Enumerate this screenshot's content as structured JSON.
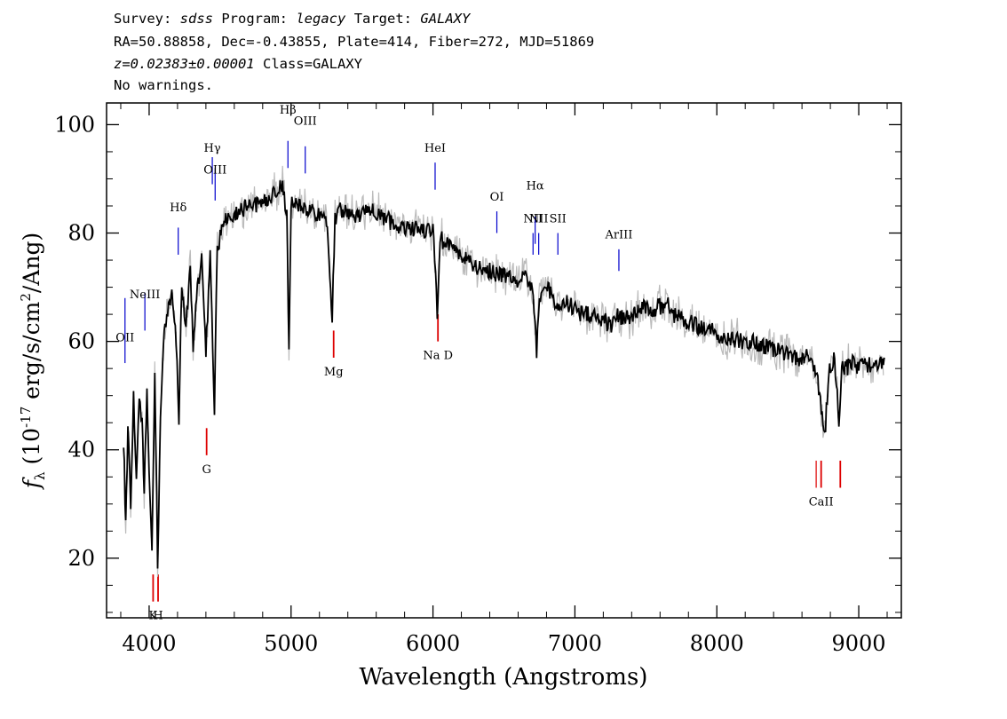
{
  "header": {
    "survey_label": "Survey:",
    "survey": "sdss",
    "program_label": "Program:",
    "program": "legacy",
    "target_label": "Target:",
    "target": "GALAXY",
    "line2": "RA=50.88858, Dec=-0.43855, Plate=414, Fiber=272, MJD=51869",
    "redshift": "z=0.02383±0.00001",
    "class_text": "Class=GALAXY",
    "warnings": "No warnings."
  },
  "chart_data": {
    "type": "line",
    "xlabel": "Wavelength (Angstroms)",
    "ylabel": "f_λ (10^-17 erg/s/cm^2/Ang)",
    "xlim": [
      3700,
      9300
    ],
    "ylim": [
      9,
      104
    ],
    "x_ticks": [
      4000,
      5000,
      6000,
      7000,
      8000,
      9000
    ],
    "y_ticks": [
      20,
      40,
      60,
      80,
      100
    ],
    "grid": false,
    "colors": {
      "flux": "#000000",
      "error": "#bbbbbb",
      "emission": "#0000cc",
      "absorption": "#dd0000"
    },
    "series": [
      {
        "x": [
          3820,
          3835,
          3850,
          3870,
          3890,
          3910,
          3930,
          3950,
          3965,
          3985,
          4000,
          4020,
          4040,
          4060,
          4080,
          4100,
          4130,
          4160,
          4190,
          4210,
          4230,
          4260,
          4290,
          4310,
          4340,
          4370,
          4400,
          4430,
          4460,
          4480,
          4500,
          4540,
          4580,
          4620,
          4660,
          4700,
          4760,
          4820,
          4860,
          4900,
          4940,
          4970,
          4985,
          5000,
          5040,
          5080,
          5120,
          5160,
          5200,
          5250,
          5290,
          5310,
          5340,
          5400,
          5460,
          5520,
          5600,
          5700,
          5800,
          5880,
          5950,
          6000,
          6030,
          6050,
          6100,
          6150,
          6200,
          6250,
          6300,
          6400,
          6500,
          6560,
          6600,
          6650,
          6700,
          6730,
          6750,
          6800,
          6870,
          6950,
          7050,
          7150,
          7250,
          7300,
          7350,
          7450,
          7550,
          7650,
          7700,
          7750,
          7850,
          7950,
          8050,
          8150,
          8250,
          8350,
          8450,
          8550,
          8650,
          8700,
          8730,
          8760,
          8790,
          8830,
          8860,
          8880,
          8910,
          8950,
          9000,
          9050,
          9100,
          9180
        ],
        "values": [
          42,
          26,
          44,
          30,
          50,
          34,
          51,
          45,
          32,
          52,
          37,
          22,
          55,
          19,
          45,
          60,
          66,
          69,
          60,
          46,
          70,
          63,
          73,
          59,
          70,
          75,
          58,
          76,
          48,
          78,
          79,
          83,
          81,
          84,
          84,
          86,
          85,
          86,
          87,
          87,
          89,
          83,
          58,
          86,
          85,
          85,
          84,
          84,
          83,
          82,
          65,
          83,
          84,
          84,
          83,
          84,
          84,
          82,
          81,
          81,
          80,
          81,
          65,
          79,
          78,
          78,
          76,
          75,
          74,
          73,
          72,
          72,
          71,
          72,
          70,
          58,
          68,
          70,
          67,
          67,
          65,
          65,
          63,
          65,
          64,
          66,
          66,
          67,
          65,
          64,
          63,
          62,
          61,
          60,
          60,
          59,
          58,
          57,
          57,
          55,
          49,
          42,
          55,
          57,
          45,
          56,
          55,
          56,
          55,
          56,
          55,
          57
        ]
      }
    ],
    "lines": [
      {
        "label": "OII",
        "x": 3830,
        "kind": "emission"
      },
      {
        "label": "NeIII",
        "x": 3970,
        "kind": "emission"
      },
      {
        "label": "Hδ",
        "x": 4205,
        "kind": "emission"
      },
      {
        "label": "Hγ",
        "x": 4445,
        "kind": "emission"
      },
      {
        "label": "OIII",
        "x": 4465,
        "kind": "emission"
      },
      {
        "label": "Hβ",
        "x": 4978,
        "kind": "emission"
      },
      {
        "label": "OIII",
        "x": 5100,
        "kind": "emission"
      },
      {
        "label": "HeI",
        "x": 6015,
        "kind": "emission"
      },
      {
        "label": "OI",
        "x": 6450,
        "kind": "emission"
      },
      {
        "label": "NII",
        "x": 6705,
        "kind": "emission"
      },
      {
        "label": "Hα",
        "x": 6720,
        "kind": "emission"
      },
      {
        "label": "NII",
        "x": 6745,
        "kind": "emission"
      },
      {
        "label": "SII",
        "x": 6880,
        "kind": "emission"
      },
      {
        "label": "ArIII",
        "x": 7310,
        "kind": "emission"
      },
      {
        "label": "K",
        "x": 4028,
        "kind": "absorption"
      },
      {
        "label": "H",
        "x": 4063,
        "kind": "absorption"
      },
      {
        "label": "G",
        "x": 4405,
        "kind": "absorption"
      },
      {
        "label": "Mg",
        "x": 5300,
        "kind": "absorption"
      },
      {
        "label": "Na D",
        "x": 6035,
        "kind": "absorption"
      },
      {
        "label": "CaII",
        "x": 8735,
        "kind": "absorption"
      }
    ]
  }
}
